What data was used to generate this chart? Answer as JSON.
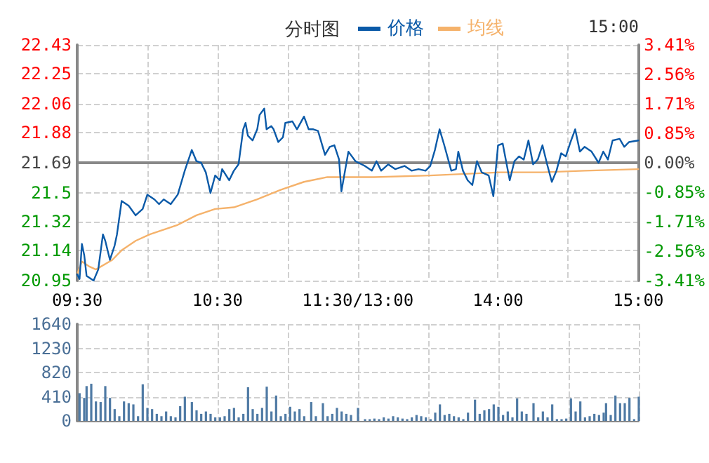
{
  "chart_data": [
    {
      "type": "line",
      "title": "分时图",
      "annotations": [
        "15:00"
      ],
      "legend": "top",
      "grid": true,
      "line_style": "solid",
      "categories": [
        "09:30",
        null,
        null,
        null,
        null,
        null,
        null,
        null,
        null,
        null,
        null,
        null,
        null,
        null,
        null,
        null,
        null,
        null,
        null,
        null,
        null,
        null,
        null,
        null,
        null,
        null,
        null,
        null,
        null,
        null,
        null,
        null,
        null,
        null,
        null,
        null,
        null,
        null,
        null,
        null,
        null,
        null,
        null,
        null,
        null,
        null,
        null,
        null,
        null,
        null,
        null,
        null,
        null,
        null,
        null,
        null,
        null,
        null,
        null,
        null,
        "10:30",
        null,
        null,
        null,
        null,
        null,
        null,
        null,
        null,
        null,
        null,
        null,
        null,
        null,
        null,
        null,
        null,
        null,
        null,
        null,
        null,
        null,
        null,
        null,
        null,
        null,
        null,
        null,
        null,
        null,
        null,
        null,
        null,
        null,
        null,
        null,
        null,
        null,
        null,
        null,
        null,
        null,
        null,
        null,
        null,
        null,
        null,
        null,
        null,
        null,
        null,
        null,
        null,
        null,
        null,
        null,
        null,
        null,
        null,
        null,
        "11:30/13:00",
        null,
        null,
        null,
        null,
        null,
        null,
        null,
        null,
        null,
        null,
        null,
        null,
        null,
        null,
        null,
        null,
        null,
        null,
        null,
        null,
        null,
        null,
        null,
        null,
        null,
        null,
        null,
        null,
        null,
        null,
        null,
        null,
        null,
        null,
        null,
        null,
        null,
        null,
        null,
        null,
        null,
        null,
        null,
        null,
        null,
        null,
        null,
        null,
        null,
        null,
        null,
        null,
        null,
        null,
        null,
        null,
        null,
        null,
        null,
        "14:00",
        null,
        null,
        null,
        null,
        null,
        null,
        null,
        null,
        null,
        null,
        null,
        null,
        null,
        null,
        null,
        null,
        null,
        null,
        null,
        null,
        null,
        null,
        null,
        null,
        null,
        null,
        null,
        null,
        null,
        null,
        null,
        null,
        null,
        null,
        null,
        null,
        null,
        null,
        null,
        null,
        null,
        null,
        null,
        null,
        null,
        null,
        null,
        null,
        null,
        null,
        null,
        null,
        null,
        null,
        null,
        null,
        null,
        null,
        null,
        "15:00"
      ],
      "ylim": [
        20.95,
        22.43
      ],
      "yticks": [
        20.95,
        21.14,
        21.32,
        21.5,
        21.69,
        21.88,
        22.06,
        22.25,
        22.43
      ],
      "y2lim": [
        -3.41,
        3.41
      ],
      "y2ticks": [
        {
          "value": -3.41,
          "label": "-3.41%"
        },
        {
          "value": -2.56,
          "label": "-2.56%"
        },
        {
          "value": -1.71,
          "label": "-1.71%"
        },
        {
          "value": -0.85,
          "label": "-0.85%"
        },
        {
          "value": 0,
          "label": "0.00%"
        },
        {
          "value": 0.85,
          "label": "0.85%"
        },
        {
          "value": 1.71,
          "label": "1.71%"
        },
        {
          "value": 2.56,
          "label": "2.56%"
        },
        {
          "value": 3.41,
          "label": "3.41%"
        }
      ],
      "series": [
        {
          "name": "价格",
          "color": "#0b5aa8",
          "values": [
            20.99,
            20.96,
            21.18,
            21.11,
            20.98,
            null,
            null,
            20.95,
            null,
            21.02,
            null,
            21.24,
            21.2,
            null,
            21.08,
            null,
            21.17,
            21.24,
            null,
            21.45,
            null,
            null,
            21.42,
            null,
            null,
            21.36,
            null,
            null,
            21.4,
            null,
            21.49,
            null,
            null,
            21.46,
            null,
            21.43,
            null,
            21.46,
            null,
            null,
            21.43,
            null,
            null,
            21.49,
            null,
            null,
            21.64,
            null,
            null,
            21.77,
            null,
            21.7,
            null,
            21.69,
            null,
            21.63,
            null,
            21.5,
            null,
            21.61,
            null,
            21.58,
            21.65,
            null,
            null,
            21.58,
            null,
            21.64,
            null,
            21.68,
            null,
            21.9,
            21.94,
            21.86,
            null,
            21.83,
            null,
            21.9,
            21.99,
            null,
            22.03,
            21.9,
            null,
            21.92,
            21.9,
            null,
            21.82,
            null,
            21.85,
            21.94,
            null,
            null,
            21.95,
            null,
            21.9,
            null,
            null,
            21.98,
            null,
            21.9,
            null,
            21.9,
            null,
            21.89,
            null,
            null,
            21.74,
            null,
            21.79,
            null,
            21.8,
            null,
            21.71,
            21.51,
            null,
            null,
            21.76,
            null,
            null,
            21.7,
            null,
            null,
            null,
            21.67,
            null,
            null,
            21.64,
            null,
            21.7,
            null,
            21.64,
            null,
            null,
            21.68,
            null,
            null,
            21.65,
            null,
            null,
            null,
            21.67,
            null,
            null,
            21.64,
            null,
            null,
            21.65,
            null,
            null,
            21.64,
            null,
            21.67,
            null,
            21.77,
            null,
            21.9,
            null,
            21.8,
            null,
            null,
            21.64,
            null,
            21.65,
            21.76,
            null,
            21.64,
            null,
            21.58,
            null,
            21.55,
            null,
            21.7,
            null,
            21.63,
            null,
            null,
            21.61,
            null,
            21.48,
            null,
            21.8,
            null,
            21.81,
            null,
            null,
            21.58,
            null,
            21.7,
            null,
            21.73,
            null,
            21.71,
            null,
            21.83,
            null,
            21.68,
            null,
            21.71,
            null,
            21.8,
            null,
            21.68,
            null,
            21.57,
            null,
            21.64,
            null,
            21.75,
            null,
            21.73,
            null,
            21.82,
            null,
            21.9,
            null,
            21.76,
            null,
            21.79,
            null,
            null,
            21.76,
            null,
            null,
            21.69,
            null,
            21.76,
            null,
            21.71,
            null,
            21.83,
            null,
            null,
            21.84,
            null,
            21.79,
            null,
            21.82,
            null,
            null,
            null,
            21.83
          ]
        },
        {
          "name": "均线",
          "color": "#f5b26b",
          "values": [
            20.99,
            null,
            21.07,
            null,
            null,
            21.04,
            null,
            null,
            21.02,
            null,
            null,
            null,
            null,
            null,
            null,
            21.08,
            null,
            null,
            null,
            21.14,
            null,
            null,
            null,
            null,
            null,
            21.2,
            null,
            null,
            null,
            null,
            null,
            21.24,
            null,
            null,
            null,
            null,
            null,
            21.27,
            null,
            null,
            null,
            null,
            null,
            21.3,
            null,
            null,
            null,
            null,
            null,
            null,
            null,
            21.36,
            null,
            null,
            null,
            null,
            null,
            null,
            null,
            21.4,
            null,
            null,
            null,
            null,
            null,
            null,
            null,
            21.41,
            null,
            null,
            null,
            null,
            null,
            null,
            null,
            null,
            null,
            21.46,
            null,
            null,
            null,
            null,
            null,
            null,
            null,
            null,
            null,
            21.52,
            null,
            null,
            null,
            null,
            null,
            null,
            null,
            null,
            null,
            21.57,
            null,
            null,
            null,
            null,
            null,
            null,
            null,
            null,
            null,
            21.6,
            null,
            null,
            null,
            21.6,
            null,
            null,
            null,
            null,
            null,
            null,
            null,
            null,
            null,
            null,
            null,
            null,
            null,
            null,
            null,
            21.6,
            null,
            null,
            null,
            null,
            null,
            null,
            null,
            null,
            null,
            null,
            null,
            null,
            null,
            null,
            null,
            null,
            null,
            null,
            null,
            null,
            null,
            null,
            null,
            21.61,
            null,
            null,
            null,
            null,
            null,
            null,
            null,
            null,
            null,
            null,
            null,
            null,
            null,
            null,
            null,
            null,
            null,
            null,
            null,
            null,
            null,
            null,
            null,
            null,
            null,
            null,
            null,
            null,
            null,
            21.63,
            null,
            null,
            null,
            null,
            null,
            null,
            null,
            null,
            null,
            null,
            null,
            null,
            null,
            null,
            null,
            null,
            null,
            21.63,
            null,
            null,
            null,
            null,
            null,
            null,
            null,
            null,
            null,
            null,
            null,
            null,
            null,
            null,
            null,
            null,
            null,
            21.64,
            null,
            null,
            null,
            null,
            null,
            null,
            null,
            null,
            null,
            null,
            null,
            null,
            null,
            null,
            null,
            null,
            null,
            null,
            null,
            null,
            null,
            null,
            21.65
          ]
        }
      ]
    },
    {
      "type": "bar",
      "tick_labels": "y",
      "grid": true,
      "color": "#4f7aa4",
      "categories": [
        null,
        null,
        null,
        null,
        null,
        null,
        null,
        null,
        null,
        null,
        null,
        null,
        null,
        null,
        null,
        null,
        null,
        null,
        null,
        null,
        null,
        null,
        null,
        null,
        null,
        null,
        null,
        null,
        null,
        null,
        null,
        null,
        null,
        null,
        null,
        null,
        null,
        null,
        null,
        null,
        null,
        null,
        null,
        null,
        null,
        null,
        null,
        null,
        null,
        null,
        null,
        null,
        null,
        null,
        null,
        null,
        null,
        null,
        null,
        null,
        null,
        null,
        null,
        null,
        null,
        null,
        null,
        null,
        null,
        null,
        null,
        null,
        null,
        null,
        null,
        null,
        null,
        null,
        null,
        null,
        null,
        null,
        null,
        null,
        null,
        null,
        null,
        null,
        null,
        null,
        null,
        null,
        null,
        null,
        null,
        null,
        null,
        null,
        null,
        null,
        null,
        null,
        null,
        null,
        null,
        null,
        null,
        null,
        null,
        null,
        null,
        null,
        null,
        null,
        null,
        null,
        null,
        null,
        null,
        null,
        null,
        null,
        null,
        null,
        null,
        null,
        null,
        null,
        null,
        null,
        null,
        null,
        null,
        null,
        null,
        null,
        null,
        null,
        null,
        null,
        null,
        null,
        null,
        null,
        null,
        null,
        null,
        null,
        null,
        null,
        null,
        null,
        null,
        null,
        null,
        null,
        null,
        null,
        null,
        null,
        null,
        null,
        null,
        null,
        null,
        null,
        null,
        null,
        null,
        null,
        null,
        null,
        null,
        null,
        null,
        null,
        null,
        null,
        null,
        null,
        null,
        null,
        null,
        null,
        null,
        null,
        null,
        null,
        null,
        null,
        null,
        null,
        null,
        null,
        null,
        null,
        null,
        null,
        null,
        null,
        null,
        null,
        null,
        null,
        null,
        null,
        null,
        null,
        null,
        null,
        null,
        null,
        null,
        null,
        null,
        null,
        null,
        null,
        null,
        null,
        null,
        null,
        null,
        null,
        null,
        null,
        null,
        null,
        null,
        null,
        null,
        null,
        null,
        null,
        null,
        null,
        null,
        null,
        null,
        null,
        null
      ],
      "ylim": [
        0,
        1640
      ],
      "yticks": [
        0,
        410,
        820,
        1230,
        1640
      ],
      "values": [
        null,
        470,
        null,
        390,
        590,
        null,
        630,
        null,
        330,
        null,
        320,
        null,
        590,
        null,
        390,
        null,
        200,
        null,
        80,
        null,
        330,
        null,
        300,
        null,
        280,
        null,
        80,
        null,
        620,
        null,
        220,
        null,
        200,
        null,
        120,
        null,
        80,
        null,
        160,
        null,
        80,
        null,
        60,
        null,
        250,
        null,
        410,
        null,
        null,
        320,
        null,
        180,
        null,
        120,
        null,
        160,
        null,
        120,
        null,
        60,
        null,
        60,
        null,
        80,
        null,
        200,
        null,
        220,
        null,
        60,
        null,
        120,
        null,
        570,
        null,
        200,
        null,
        120,
        null,
        220,
        null,
        580,
        null,
        160,
        null,
        430,
        null,
        80,
        null,
        120,
        null,
        240,
        null,
        160,
        null,
        200,
        null,
        80,
        null,
        null,
        320,
        null,
        80,
        null,
        null,
        300,
        null,
        80,
        null,
        120,
        null,
        220,
        null,
        160,
        null,
        120,
        null,
        100,
        null,
        null,
        220,
        null,
        null,
        30,
        null,
        30,
        null,
        40,
        null,
        30,
        null,
        60,
        null,
        40,
        null,
        80,
        null,
        60,
        null,
        40,
        null,
        30,
        null,
        60,
        null,
        100,
        null,
        80,
        null,
        60,
        null,
        30,
        null,
        140,
        null,
        280,
        null,
        100,
        null,
        120,
        null,
        80,
        null,
        60,
        null,
        30,
        null,
        140,
        null,
        null,
        360,
        null,
        120,
        null,
        180,
        null,
        200,
        null,
        280,
        null,
        240,
        null,
        100,
        null,
        160,
        null,
        60,
        null,
        380,
        null,
        160,
        null,
        120,
        null,
        null,
        300,
        null,
        60,
        null,
        160,
        null,
        60,
        null,
        280,
        null,
        30,
        null,
        30,
        null,
        40,
        null,
        380,
        null,
        160,
        null,
        330,
        null,
        60,
        null,
        80,
        null,
        120,
        null,
        100,
        null,
        140,
        300,
        null,
        100,
        null,
        430,
        null,
        300,
        null,
        300,
        null,
        390,
        null,
        30,
        null,
        410
      ]
    }
  ]
}
